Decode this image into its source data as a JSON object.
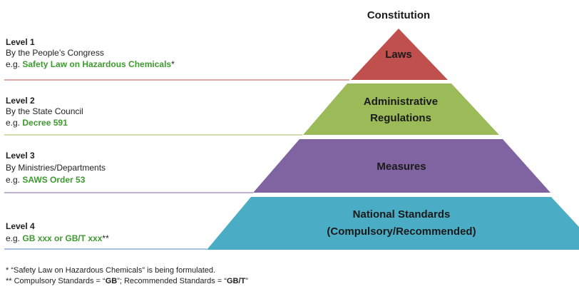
{
  "title": "Constitution",
  "pyramid": [
    {
      "lines": [
        "Laws"
      ]
    },
    {
      "lines": [
        "Administrative",
        "Regulations"
      ]
    },
    {
      "lines": [
        "Measures"
      ]
    },
    {
      "lines": [
        "National Standards",
        "(Compulsory/Recommended)"
      ]
    }
  ],
  "levels": [
    {
      "level": "Level 1",
      "by": "By the People’s Congress",
      "eg": "e.g. ",
      "example": "Safety Law on Hazardous Chemicals",
      "suffix": "*"
    },
    {
      "level": "Level 2",
      "by": "By the State Council",
      "eg": "e.g. ",
      "example": "Decree 591"
    },
    {
      "level": "Level 3",
      "by": "By Ministries/Departments",
      "eg": "e.g. ",
      "example": "SAWS Order 53"
    },
    {
      "level": "Level 4",
      "eg": "e.g. ",
      "example": "GB xxx or GB/T xxx",
      "suffix": "**"
    }
  ],
  "footnotes": {
    "first": "* “Safety Law on Hazardous Chemicals” is being formulated.",
    "second": {
      "prefix": "** Compulsory Standards = “",
      "code1": "GB",
      "middle": "”; Recommended Standards = “",
      "code2": "GB/T",
      "end": "”"
    }
  }
}
